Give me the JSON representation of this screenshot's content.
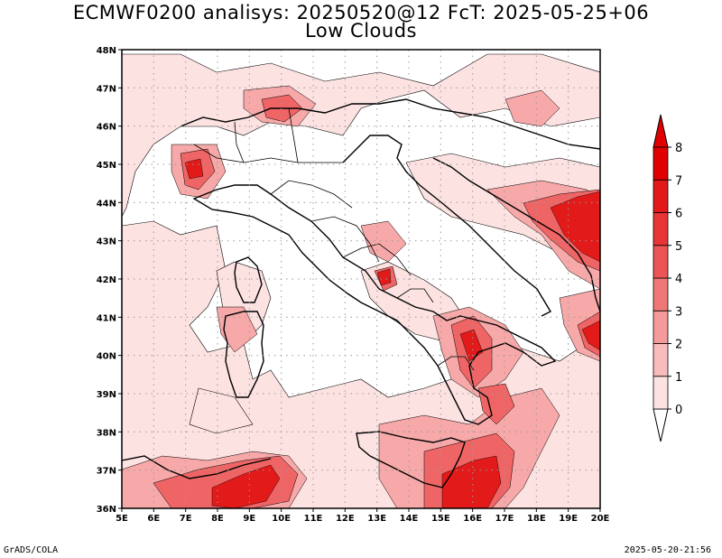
{
  "title_line1": "ECMWF0200 analisys: 20250520@12 FcT: 2025-05-25+06",
  "title_line2": "Low Clouds",
  "footer_left": "GrADS/COLA",
  "footer_right": "2025-05-20-21:56",
  "map": {
    "lon_range": [
      5,
      20
    ],
    "lat_range": [
      36,
      48
    ],
    "lon_ticks": [
      "5E",
      "6E",
      "7E",
      "8E",
      "9E",
      "10E",
      "11E",
      "12E",
      "13E",
      "14E",
      "15E",
      "16E",
      "17E",
      "18E",
      "19E",
      "20E"
    ],
    "lat_ticks": [
      "36N",
      "37N",
      "38N",
      "39N",
      "40N",
      "41N",
      "42N",
      "43N",
      "44N",
      "45N",
      "46N",
      "47N",
      "48N"
    ],
    "grid": "dotted"
  },
  "colorbar": {
    "labels": [
      "0",
      "1",
      "2",
      "3",
      "4",
      "5",
      "6",
      "7",
      "8"
    ],
    "colors": [
      "#ffffff",
      "#fde2e2",
      "#f9bcbc",
      "#f59a9a",
      "#f07777",
      "#eb5555",
      "#e83535",
      "#e31818",
      "#e00000"
    ]
  }
}
